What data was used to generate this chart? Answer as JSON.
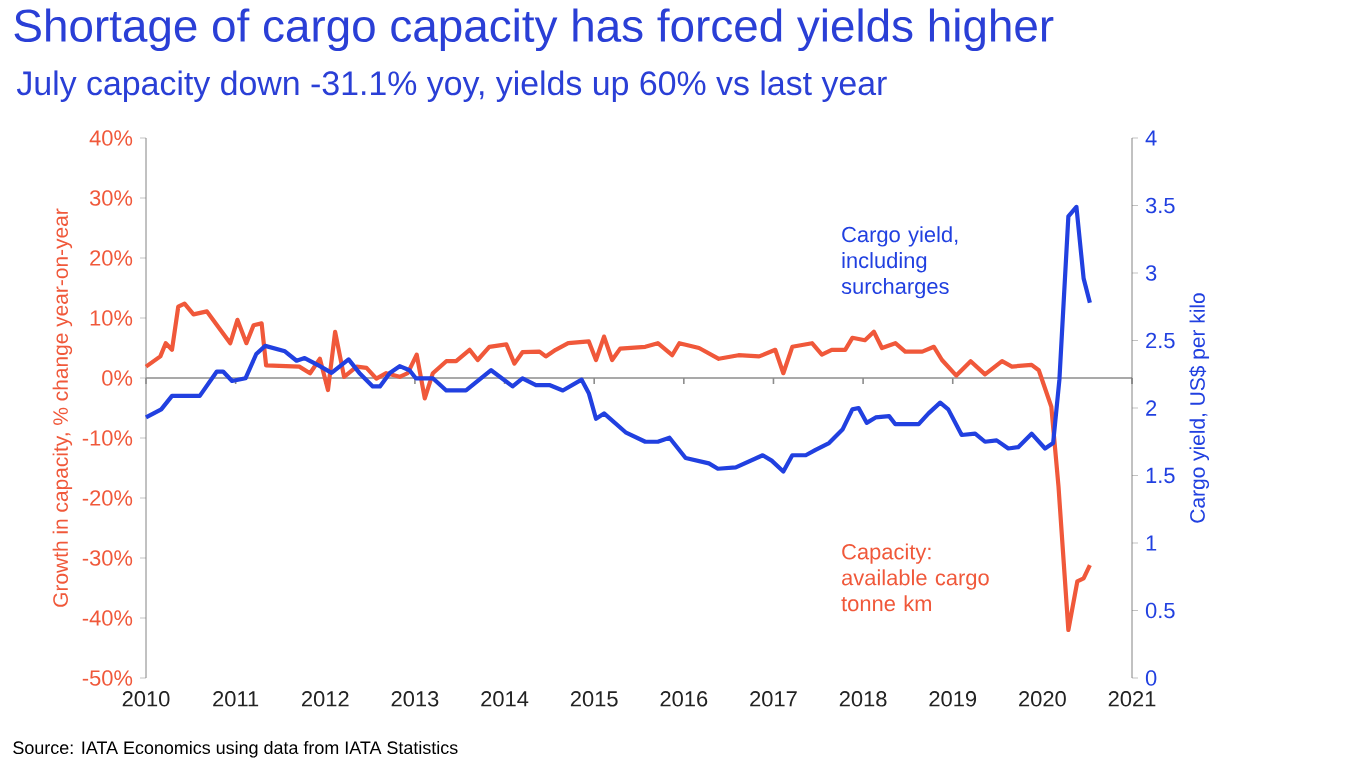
{
  "chart_data": {
    "type": "line",
    "title": "Shortage of cargo capacity has forced yields higher",
    "subtitle": "July capacity down -31.1% yoy, yields up 60% vs last year",
    "ylabel": "Growth in capacity, % change year-on-year",
    "y2label": "Cargo yield, US$ per kilo",
    "xlim": [
      2010,
      2021
    ],
    "xticks": [
      2010,
      2011,
      2012,
      2013,
      2014,
      2015,
      2016,
      2017,
      2018,
      2019,
      2020,
      2021
    ],
    "ylim": [
      -50,
      40
    ],
    "yticks": [
      {
        "value": -50,
        "label": "-50%"
      },
      {
        "value": -40,
        "label": "-40%"
      },
      {
        "value": -30,
        "label": "-30%"
      },
      {
        "value": -20,
        "label": "-20%"
      },
      {
        "value": -10,
        "label": "-10%"
      },
      {
        "value": 0,
        "label": "0%"
      },
      {
        "value": 10,
        "label": "10%"
      },
      {
        "value": 20,
        "label": "20%"
      },
      {
        "value": 30,
        "label": "30%"
      },
      {
        "value": 40,
        "label": "40%"
      }
    ],
    "y2lim": [
      0,
      4
    ],
    "y2ticks": [
      0,
      0.5,
      1,
      1.5,
      2,
      2.5,
      3,
      3.5,
      4
    ],
    "legend": false,
    "grid": false,
    "marker": "none",
    "line_style": "solid",
    "ref_lines": [
      {
        "axis": "y",
        "value": 0,
        "color": "#8c8c8c"
      }
    ],
    "series": [
      {
        "name": "Capacity: available cargo tonne km",
        "color": "#f0583a",
        "x": [
          2010.0,
          2010.16,
          2010.22,
          2010.29,
          2010.36,
          2010.43,
          2010.53,
          2010.68,
          2010.94,
          2011.02,
          2011.12,
          2011.2,
          2011.29,
          2011.34,
          2011.71,
          2011.83,
          2011.94,
          2012.03,
          2012.11,
          2012.21,
          2012.35,
          2012.46,
          2012.57,
          2012.68,
          2012.83,
          2012.92,
          2013.02,
          2013.11,
          2013.2,
          2013.35,
          2013.46,
          2013.61,
          2013.7,
          2013.83,
          2014.02,
          2014.11,
          2014.2,
          2014.39,
          2014.46,
          2014.57,
          2014.71,
          2014.94,
          2015.02,
          2015.11,
          2015.2,
          2015.29,
          2015.57,
          2015.71,
          2015.87,
          2015.95,
          2016.17,
          2016.39,
          2016.61,
          2016.84,
          2017.02,
          2017.11,
          2017.21,
          2017.43,
          2017.54,
          2017.65,
          2017.8,
          2017.88,
          2018.02,
          2018.12,
          2018.21,
          2018.36,
          2018.47,
          2018.66,
          2018.79,
          2018.88,
          2019.04,
          2019.2,
          2019.36,
          2019.55,
          2019.66,
          2019.88,
          2019.96,
          2020.1,
          2020.18,
          2020.29,
          2020.39,
          2020.46,
          2020.53
        ],
        "values": [
          1.9,
          3.6,
          5.8,
          4.7,
          11.9,
          12.4,
          10.6,
          11.1,
          5.8,
          9.7,
          5.8,
          8.8,
          9.1,
          2.1,
          1.9,
          0.8,
          3.2,
          -2,
          7.7,
          0.2,
          1.9,
          1.7,
          -0.1,
          0.8,
          0.2,
          0.8,
          3.9,
          -3.4,
          0.8,
          2.8,
          2.8,
          4.7,
          3,
          5.2,
          5.6,
          2.4,
          4.3,
          4.4,
          3.6,
          4.7,
          5.8,
          6.1,
          3,
          6.9,
          3,
          4.9,
          5.2,
          5.8,
          3.8,
          5.8,
          5,
          3.2,
          3.8,
          3.6,
          4.7,
          0.8,
          5.2,
          5.8,
          3.9,
          4.7,
          4.7,
          6.7,
          6.3,
          7.7,
          5,
          5.8,
          4.4,
          4.4,
          5.2,
          3,
          0.4,
          2.8,
          0.6,
          2.8,
          1.9,
          2.2,
          1.3,
          -4.8,
          -18.1,
          -42,
          -33.9,
          -33.4,
          -31.2
        ]
      },
      {
        "name": "Cargo yield, including surcharges",
        "color": "#2140e0",
        "axis": "y2",
        "x": [
          2010.0,
          2010.17,
          2010.29,
          2010.6,
          2010.79,
          2010.86,
          2010.96,
          2011.11,
          2011.23,
          2011.33,
          2011.55,
          2011.68,
          2011.77,
          2011.94,
          2012.07,
          2012.26,
          2012.38,
          2012.53,
          2012.61,
          2012.72,
          2012.83,
          2012.94,
          2013.01,
          2013.2,
          2013.35,
          2013.57,
          2013.85,
          2014.09,
          2014.2,
          2014.35,
          2014.5,
          2014.65,
          2014.86,
          2014.94,
          2015.02,
          2015.11,
          2015.35,
          2015.57,
          2015.71,
          2015.84,
          2016.02,
          2016.28,
          2016.38,
          2016.58,
          2016.88,
          2016.98,
          2017.11,
          2017.21,
          2017.36,
          2017.47,
          2017.62,
          2017.77,
          2017.88,
          2017.95,
          2018.04,
          2018.14,
          2018.29,
          2018.36,
          2018.62,
          2018.73,
          2018.86,
          2018.95,
          2019.1,
          2019.25,
          2019.36,
          2019.49,
          2019.62,
          2019.73,
          2019.88,
          2020.03,
          2020.12,
          2020.19,
          2020.29,
          2020.38,
          2020.46,
          2020.53
        ],
        "values": [
          1.93,
          1.99,
          2.09,
          2.09,
          2.27,
          2.27,
          2.2,
          2.22,
          2.4,
          2.46,
          2.42,
          2.35,
          2.37,
          2.31,
          2.26,
          2.36,
          2.26,
          2.16,
          2.16,
          2.26,
          2.31,
          2.28,
          2.22,
          2.22,
          2.13,
          2.13,
          2.28,
          2.16,
          2.22,
          2.17,
          2.17,
          2.13,
          2.21,
          2.11,
          1.92,
          1.96,
          1.82,
          1.75,
          1.75,
          1.78,
          1.63,
          1.59,
          1.55,
          1.56,
          1.65,
          1.61,
          1.53,
          1.65,
          1.65,
          1.69,
          1.74,
          1.84,
          1.99,
          2.0,
          1.89,
          1.93,
          1.94,
          1.88,
          1.88,
          1.96,
          2.04,
          1.99,
          1.8,
          1.81,
          1.75,
          1.76,
          1.7,
          1.71,
          1.81,
          1.7,
          1.74,
          2.21,
          3.42,
          3.49,
          2.96,
          2.78
        ]
      }
    ],
    "annotations": [
      "Source: IATA Economics using data from IATA Statistics"
    ]
  }
}
